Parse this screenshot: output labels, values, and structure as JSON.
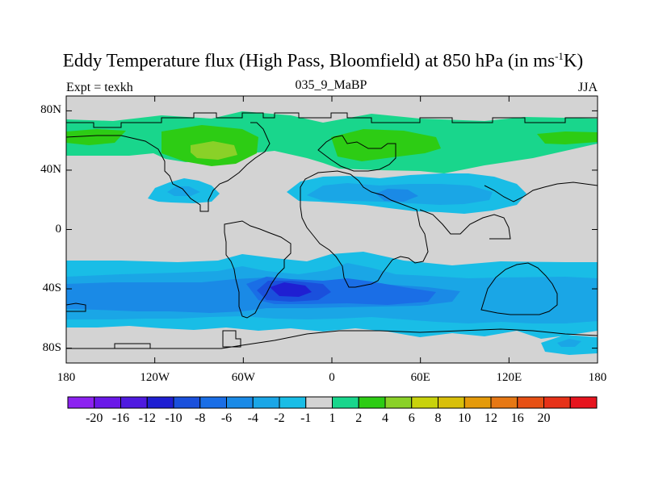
{
  "title": {
    "main": "Eddy Temperature flux (High Pass, Bloomfield) at 850 hPa (in ms",
    "sup": "-1",
    "end": "K)"
  },
  "subtitle": {
    "left": "Expt = texkh",
    "center": "035_9_MaBP",
    "right": "JJA"
  },
  "map": {
    "projection": "cylindrical-equidistant",
    "lon_range": [
      -180,
      180
    ],
    "lat_range": [
      -90,
      90
    ],
    "y_ticks": [
      {
        "lat": 80,
        "label": "80N"
      },
      {
        "lat": 40,
        "label": "40N"
      },
      {
        "lat": 0,
        "label": "0"
      },
      {
        "lat": -40,
        "label": "40S"
      },
      {
        "lat": -80,
        "label": "80S"
      }
    ],
    "x_ticks": [
      {
        "lon": -180,
        "label": "180"
      },
      {
        "lon": -120,
        "label": "120W"
      },
      {
        "lon": -60,
        "label": "60W"
      },
      {
        "lon": 0,
        "label": "0"
      },
      {
        "lon": 60,
        "label": "60E"
      },
      {
        "lon": 120,
        "label": "120E"
      },
      {
        "lon": 180,
        "label": "180"
      }
    ],
    "background_color": "#d3d3d3"
  },
  "colorbar": {
    "colors": [
      "#8c22f0",
      "#6a18e8",
      "#4f1ae0",
      "#1f1fd2",
      "#1a50dc",
      "#1a6ee6",
      "#1a8ae6",
      "#1aa6e6",
      "#19bde6",
      "#d3d3d3",
      "#19d68c",
      "#2dcc14",
      "#8ad128",
      "#c8d20c",
      "#d8bf0a",
      "#e49a0a",
      "#e67814",
      "#e65014",
      "#e63218",
      "#e6141e"
    ],
    "labels": [
      "-20",
      "-16",
      "-12",
      "-10",
      "-8",
      "-6",
      "-4",
      "-2",
      "-1",
      "1",
      "2",
      "4",
      "6",
      "8",
      "10",
      "12",
      "16",
      "20"
    ]
  }
}
